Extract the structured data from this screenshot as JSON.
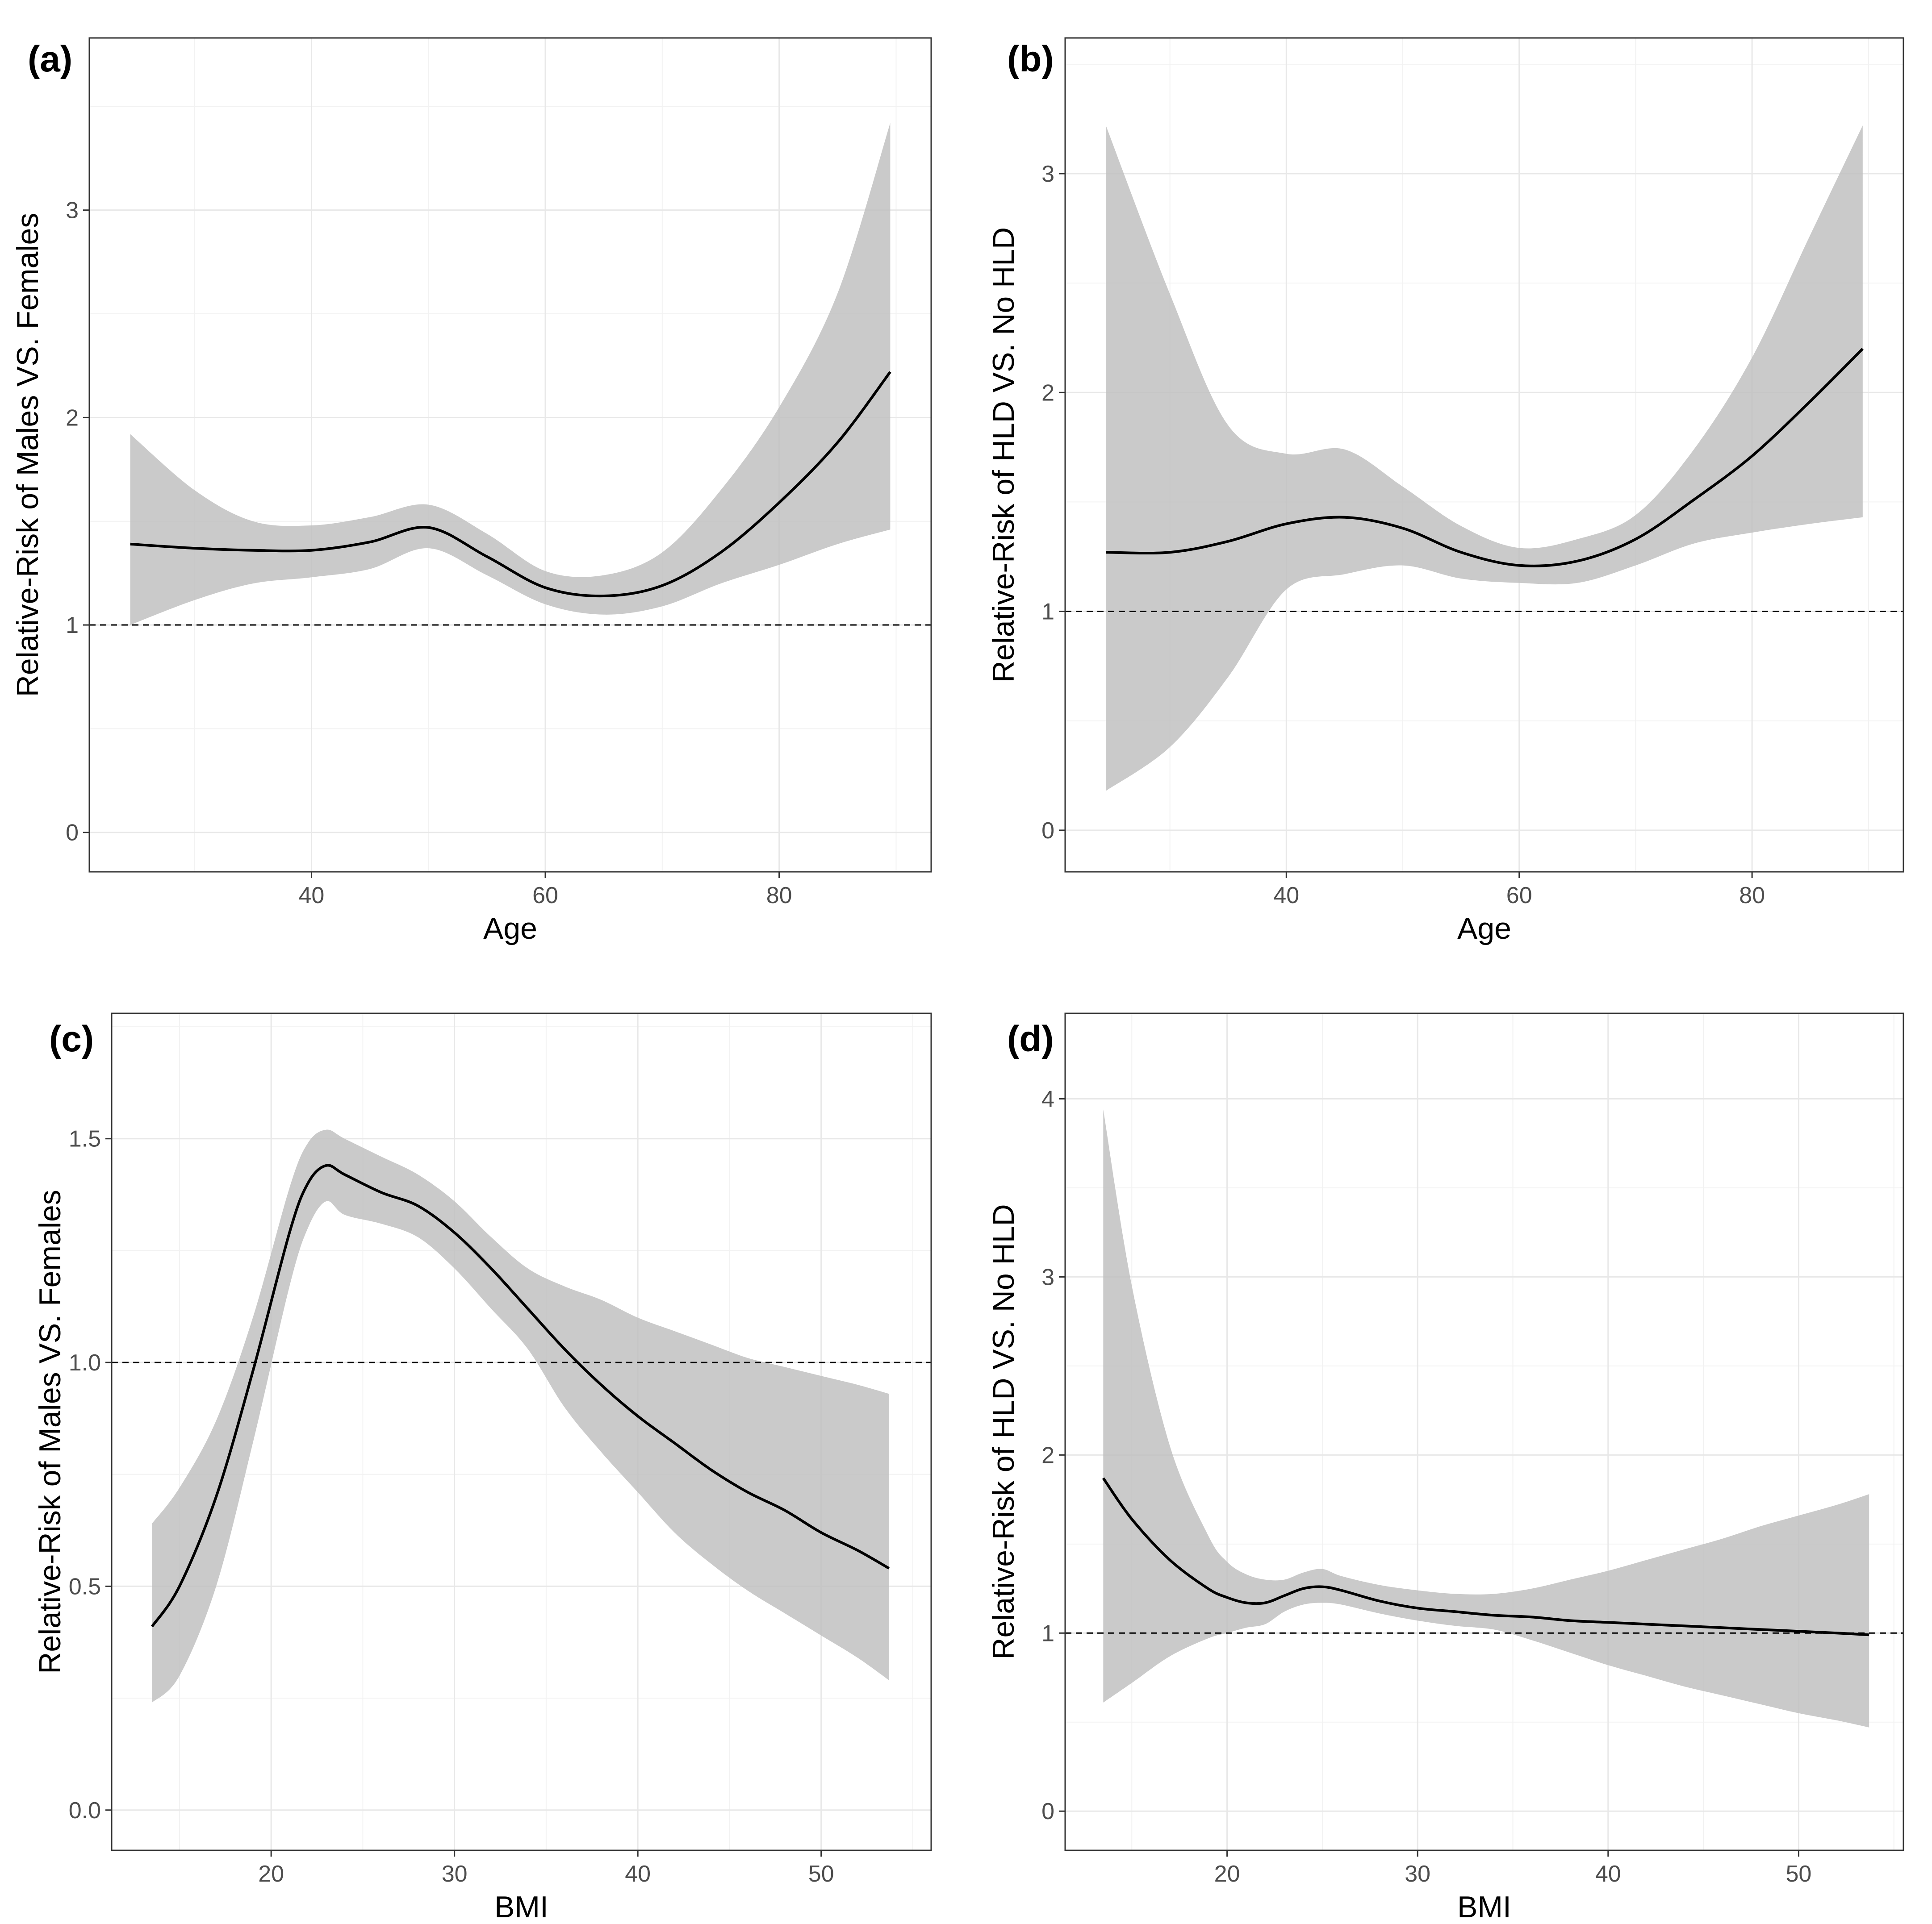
{
  "colors": {
    "band": "#bdbdbd",
    "line": "#000000",
    "grid": "#e8e8e8",
    "background": "#ffffff"
  },
  "chart_data": [
    {
      "type": "area",
      "panel_label": "(a)",
      "xlabel": "Age",
      "ylabel": "Relative-Risk of Males VS. Females",
      "xlim": [
        21,
        93
      ],
      "ylim": [
        -0.19,
        3.83
      ],
      "xticks": [
        40,
        60,
        80
      ],
      "yticks": [
        0,
        1,
        2,
        3
      ],
      "xticks_minor": [
        30,
        50,
        70,
        90
      ],
      "yticks_minor": [
        0.5,
        1.5,
        2.5,
        3.5
      ],
      "reference_y": 1,
      "x": [
        24.5,
        30,
        35,
        40,
        45,
        50,
        55,
        60,
        65,
        70,
        75,
        80,
        85,
        89.5
      ],
      "y": [
        1.39,
        1.37,
        1.36,
        1.36,
        1.4,
        1.47,
        1.33,
        1.18,
        1.14,
        1.19,
        1.35,
        1.59,
        1.88,
        2.22
      ],
      "lower": [
        1.0,
        1.12,
        1.2,
        1.23,
        1.27,
        1.37,
        1.24,
        1.1,
        1.05,
        1.09,
        1.2,
        1.29,
        1.39,
        1.46
      ],
      "upper": [
        1.92,
        1.65,
        1.5,
        1.48,
        1.52,
        1.58,
        1.44,
        1.26,
        1.24,
        1.35,
        1.65,
        2.05,
        2.6,
        3.42
      ]
    },
    {
      "type": "area",
      "panel_label": "(b)",
      "xlabel": "Age",
      "ylabel": "Relative-Risk of HLD VS. No HLD",
      "xlim": [
        21,
        93
      ],
      "ylim": [
        -0.19,
        3.62
      ],
      "xticks": [
        40,
        60,
        80
      ],
      "yticks": [
        0,
        1,
        2,
        3
      ],
      "xticks_minor": [
        30,
        50,
        70,
        90
      ],
      "yticks_minor": [
        0.5,
        1.5,
        2.5,
        3.5
      ],
      "reference_y": 1,
      "x": [
        24.5,
        30,
        35,
        40,
        45,
        50,
        55,
        60,
        65,
        70,
        75,
        80,
        85,
        89.5
      ],
      "y": [
        1.27,
        1.27,
        1.32,
        1.4,
        1.43,
        1.38,
        1.27,
        1.21,
        1.23,
        1.33,
        1.51,
        1.71,
        1.96,
        2.2
      ],
      "lower": [
        0.18,
        0.38,
        0.7,
        1.1,
        1.17,
        1.21,
        1.15,
        1.13,
        1.13,
        1.21,
        1.31,
        1.36,
        1.4,
        1.43
      ],
      "upper": [
        3.22,
        2.45,
        1.85,
        1.72,
        1.74,
        1.57,
        1.39,
        1.29,
        1.33,
        1.44,
        1.74,
        2.16,
        2.72,
        3.22
      ]
    },
    {
      "type": "area",
      "panel_label": "(c)",
      "xlabel": "BMI",
      "ylabel": "Relative-Risk of Males VS. Females",
      "xlim": [
        11.3,
        56
      ],
      "ylim": [
        -0.09,
        1.78
      ],
      "xticks": [
        20,
        30,
        40,
        50
      ],
      "yticks": [
        0.0,
        0.5,
        1.0,
        1.5
      ],
      "tick_labels_y": [
        "0.0",
        "0.5",
        "1.0",
        "1.5"
      ],
      "xticks_minor": [
        15,
        25,
        35,
        45,
        55
      ],
      "yticks_minor": [
        0.25,
        0.75,
        1.25,
        1.75
      ],
      "reference_y": 1.0,
      "x": [
        13.5,
        15,
        17,
        19,
        21,
        22,
        23,
        24,
        26,
        28,
        30,
        32,
        34,
        36,
        38,
        40,
        42,
        44,
        46,
        48,
        50,
        52,
        53.7
      ],
      "y": [
        0.41,
        0.5,
        0.7,
        0.98,
        1.29,
        1.4,
        1.44,
        1.42,
        1.38,
        1.35,
        1.29,
        1.21,
        1.12,
        1.03,
        0.95,
        0.88,
        0.82,
        0.76,
        0.71,
        0.67,
        0.62,
        0.58,
        0.54
      ],
      "lower": [
        0.24,
        0.3,
        0.5,
        0.82,
        1.17,
        1.3,
        1.36,
        1.33,
        1.31,
        1.28,
        1.21,
        1.12,
        1.03,
        0.9,
        0.8,
        0.71,
        0.62,
        0.55,
        0.49,
        0.44,
        0.39,
        0.34,
        0.29
      ],
      "upper": [
        0.64,
        0.72,
        0.87,
        1.1,
        1.39,
        1.49,
        1.52,
        1.5,
        1.46,
        1.42,
        1.36,
        1.28,
        1.21,
        1.17,
        1.14,
        1.1,
        1.07,
        1.04,
        1.01,
        0.99,
        0.97,
        0.95,
        0.93
      ]
    },
    {
      "type": "area",
      "panel_label": "(d)",
      "xlabel": "BMI",
      "ylabel": "Relative-Risk of HLD VS. No HLD",
      "xlim": [
        11.5,
        55.5
      ],
      "ylim": [
        -0.22,
        4.48
      ],
      "xticks": [
        20,
        30,
        40,
        50
      ],
      "yticks": [
        0,
        1,
        2,
        3,
        4
      ],
      "xticks_minor": [
        15,
        25,
        35,
        45,
        55
      ],
      "yticks_minor": [
        0.5,
        1.5,
        2.5,
        3.5
      ],
      "reference_y": 1,
      "x": [
        13.5,
        15,
        17,
        19,
        20,
        21,
        22,
        23,
        24,
        25,
        26,
        28,
        30,
        32,
        34,
        36,
        38,
        40,
        42,
        44,
        46,
        48,
        50,
        52,
        53.7
      ],
      "y": [
        1.87,
        1.64,
        1.41,
        1.25,
        1.2,
        1.17,
        1.17,
        1.21,
        1.25,
        1.26,
        1.24,
        1.18,
        1.14,
        1.12,
        1.1,
        1.09,
        1.07,
        1.06,
        1.05,
        1.04,
        1.03,
        1.02,
        1.01,
        1.0,
        0.99
      ],
      "lower": [
        0.61,
        0.72,
        0.87,
        0.97,
        1.0,
        1.03,
        1.05,
        1.12,
        1.16,
        1.17,
        1.16,
        1.11,
        1.07,
        1.04,
        1.02,
        0.96,
        0.89,
        0.82,
        0.76,
        0.7,
        0.65,
        0.6,
        0.55,
        0.51,
        0.47
      ],
      "upper": [
        3.94,
        2.95,
        2.05,
        1.55,
        1.4,
        1.33,
        1.3,
        1.3,
        1.34,
        1.36,
        1.32,
        1.27,
        1.24,
        1.22,
        1.22,
        1.25,
        1.3,
        1.35,
        1.41,
        1.47,
        1.53,
        1.6,
        1.66,
        1.72,
        1.78
      ]
    }
  ]
}
